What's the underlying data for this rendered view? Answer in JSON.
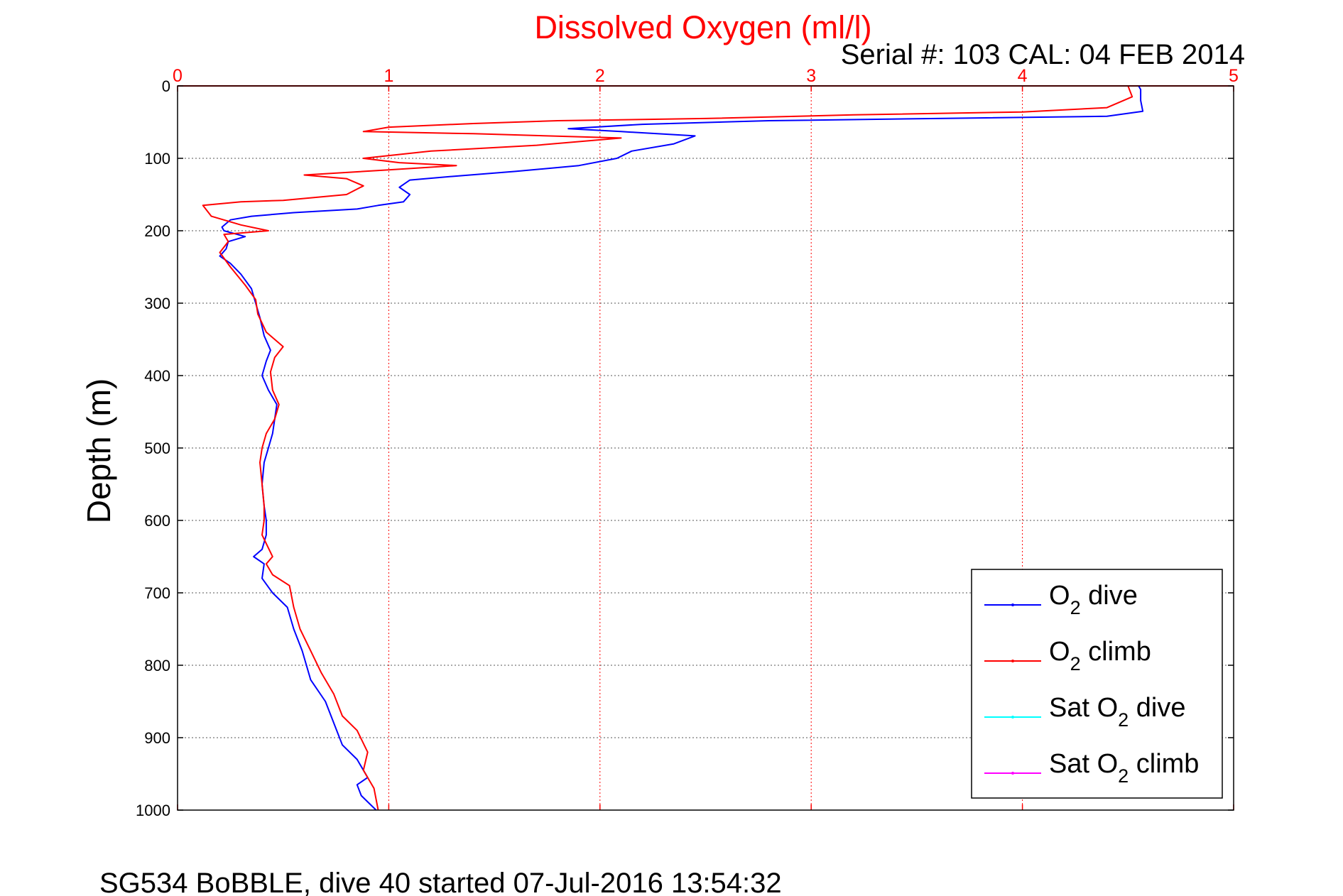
{
  "chart_data": {
    "type": "line",
    "title": "Dissolved Oxygen (ml/l)",
    "subtitle": "Serial #: 103  CAL: 04 FEB 2014",
    "ylabel": "Depth (m)",
    "footer": "SG534 BoBBLE, dive 40 started 07-Jul-2016 13:54:32",
    "xlim": [
      0,
      5
    ],
    "ylim": [
      0,
      1000
    ],
    "y_reversed": true,
    "x_ticks": [
      "0",
      "1",
      "2",
      "3",
      "4",
      "5"
    ],
    "y_ticks": [
      "0",
      "100",
      "200",
      "300",
      "400",
      "500",
      "600",
      "700",
      "800",
      "900",
      "1000"
    ],
    "grid": true,
    "legend_position": "bottom-right",
    "colors": {
      "dive": "#0000ff",
      "climb": "#ff0000",
      "sat_dive": "#00ffff",
      "sat_climb": "#ff00ff",
      "x_axis": "#ff0000",
      "grid": "#555555"
    },
    "legend": [
      {
        "pre": "O",
        "sub": "2",
        "post": " dive",
        "color": "#0000ff"
      },
      {
        "pre": "O",
        "sub": "2",
        "post": " climb",
        "color": "#ff0000"
      },
      {
        "pre": "Sat O",
        "sub": "2",
        "post": " dive",
        "color": "#00ffff"
      },
      {
        "pre": "Sat O",
        "sub": "2",
        "post": " climb",
        "color": "#ff00ff"
      }
    ],
    "series": [
      {
        "key": "dive",
        "points": [
          [
            4.55,
            0
          ],
          [
            4.56,
            5
          ],
          [
            4.56,
            20
          ],
          [
            4.57,
            35
          ],
          [
            4.4,
            42
          ],
          [
            3.6,
            45
          ],
          [
            2.8,
            48
          ],
          [
            2.2,
            53
          ],
          [
            1.85,
            59
          ],
          [
            2.1,
            63
          ],
          [
            2.45,
            69
          ],
          [
            2.35,
            80
          ],
          [
            2.15,
            90
          ],
          [
            2.08,
            100
          ],
          [
            1.9,
            110
          ],
          [
            1.6,
            118
          ],
          [
            1.3,
            125
          ],
          [
            1.1,
            130
          ],
          [
            1.05,
            140
          ],
          [
            1.1,
            150
          ],
          [
            1.07,
            160
          ],
          [
            0.95,
            165
          ],
          [
            0.85,
            170
          ],
          [
            0.55,
            175
          ],
          [
            0.35,
            180
          ],
          [
            0.25,
            185
          ],
          [
            0.21,
            195
          ],
          [
            0.22,
            200
          ],
          [
            0.32,
            208
          ],
          [
            0.24,
            215
          ],
          [
            0.23,
            225
          ],
          [
            0.2,
            235
          ],
          [
            0.25,
            245
          ],
          [
            0.3,
            260
          ],
          [
            0.35,
            280
          ],
          [
            0.37,
            300
          ],
          [
            0.39,
            320
          ],
          [
            0.41,
            345
          ],
          [
            0.44,
            365
          ],
          [
            0.42,
            380
          ],
          [
            0.4,
            400
          ],
          [
            0.43,
            420
          ],
          [
            0.47,
            440
          ],
          [
            0.46,
            460
          ],
          [
            0.45,
            480
          ],
          [
            0.43,
            500
          ],
          [
            0.41,
            520
          ],
          [
            0.4,
            550
          ],
          [
            0.41,
            580
          ],
          [
            0.42,
            600
          ],
          [
            0.42,
            620
          ],
          [
            0.4,
            640
          ],
          [
            0.36,
            650
          ],
          [
            0.41,
            660
          ],
          [
            0.4,
            680
          ],
          [
            0.45,
            700
          ],
          [
            0.52,
            720
          ],
          [
            0.55,
            750
          ],
          [
            0.59,
            780
          ],
          [
            0.63,
            820
          ],
          [
            0.7,
            850
          ],
          [
            0.74,
            880
          ],
          [
            0.78,
            910
          ],
          [
            0.85,
            930
          ],
          [
            0.9,
            955
          ],
          [
            0.85,
            965
          ],
          [
            0.87,
            980
          ],
          [
            0.94,
            1000
          ]
        ]
      },
      {
        "key": "climb",
        "points": [
          [
            4.5,
            0
          ],
          [
            4.52,
            15
          ],
          [
            4.4,
            30
          ],
          [
            4.0,
            36
          ],
          [
            3.2,
            40
          ],
          [
            2.5,
            45
          ],
          [
            1.8,
            48
          ],
          [
            1.4,
            52
          ],
          [
            1.0,
            57
          ],
          [
            0.88,
            63
          ],
          [
            1.4,
            66
          ],
          [
            2.1,
            72
          ],
          [
            1.7,
            82
          ],
          [
            1.2,
            90
          ],
          [
            0.88,
            100
          ],
          [
            1.05,
            106
          ],
          [
            1.32,
            110
          ],
          [
            1.0,
            116
          ],
          [
            0.6,
            123
          ],
          [
            0.8,
            128
          ],
          [
            0.88,
            138
          ],
          [
            0.8,
            150
          ],
          [
            0.5,
            158
          ],
          [
            0.3,
            160
          ],
          [
            0.12,
            165
          ],
          [
            0.16,
            180
          ],
          [
            0.3,
            192
          ],
          [
            0.43,
            200
          ],
          [
            0.22,
            205
          ],
          [
            0.24,
            215
          ],
          [
            0.2,
            230
          ],
          [
            0.25,
            250
          ],
          [
            0.32,
            275
          ],
          [
            0.37,
            295
          ],
          [
            0.38,
            315
          ],
          [
            0.42,
            340
          ],
          [
            0.5,
            360
          ],
          [
            0.46,
            375
          ],
          [
            0.44,
            395
          ],
          [
            0.45,
            420
          ],
          [
            0.48,
            440
          ],
          [
            0.46,
            460
          ],
          [
            0.42,
            480
          ],
          [
            0.4,
            500
          ],
          [
            0.39,
            520
          ],
          [
            0.4,
            550
          ],
          [
            0.41,
            580
          ],
          [
            0.41,
            600
          ],
          [
            0.4,
            620
          ],
          [
            0.45,
            650
          ],
          [
            0.42,
            660
          ],
          [
            0.45,
            675
          ],
          [
            0.53,
            690
          ],
          [
            0.55,
            720
          ],
          [
            0.58,
            750
          ],
          [
            0.63,
            780
          ],
          [
            0.68,
            810
          ],
          [
            0.74,
            840
          ],
          [
            0.78,
            870
          ],
          [
            0.85,
            890
          ],
          [
            0.9,
            920
          ],
          [
            0.88,
            945
          ],
          [
            0.93,
            970
          ],
          [
            0.95,
            1000
          ]
        ]
      }
    ]
  }
}
